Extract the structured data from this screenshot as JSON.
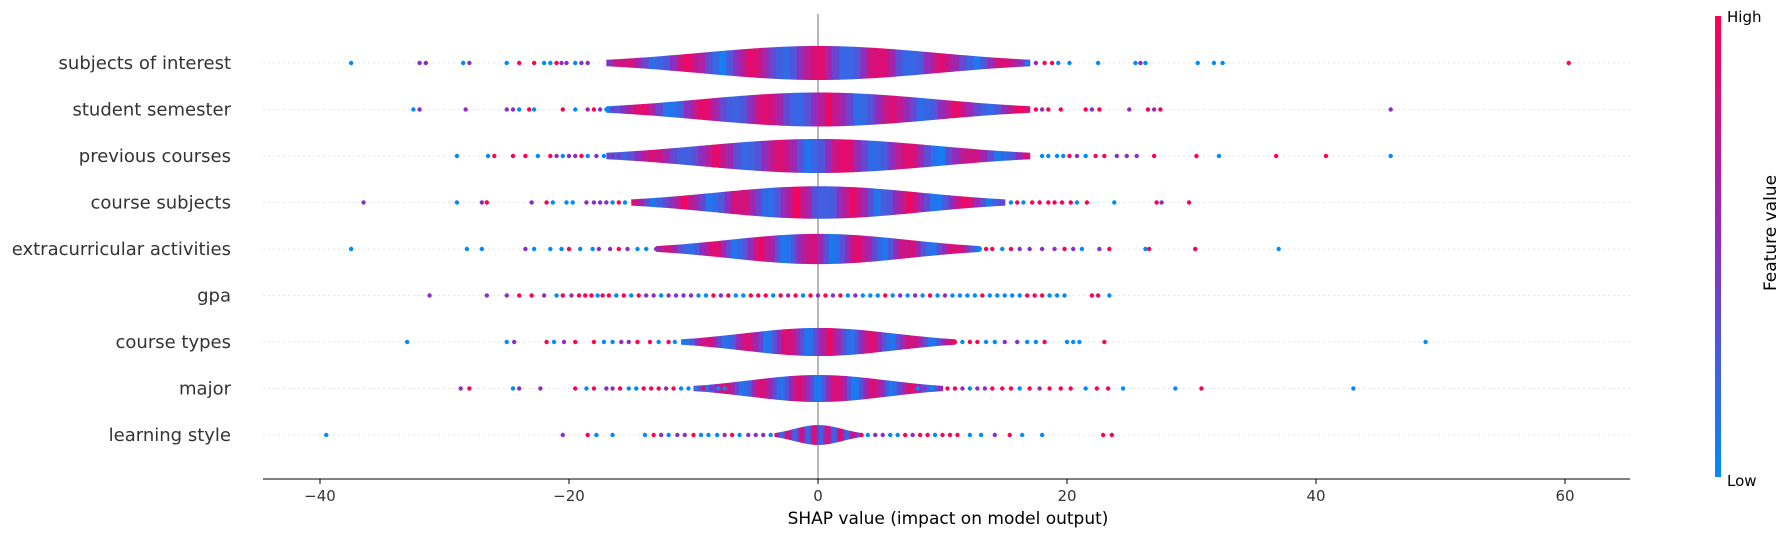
{
  "chart_data": {
    "type": "violin",
    "title": "",
    "xlabel": "SHAP value (impact on model output)",
    "xlim": [
      -45,
      65.5
    ],
    "xticks": [
      -40,
      -20,
      0,
      20,
      40,
      60
    ],
    "colorbar": {
      "label": "Feature value",
      "high": "High",
      "low": "Low"
    },
    "colors": {
      "low": "#008bfb",
      "mid": "#8a2fc2",
      "high": "#ff0052",
      "axis": "#000000",
      "zero_line": "#999999",
      "row_grid": "#e6e6e6"
    },
    "features": [
      {
        "name": "subjects of interest",
        "spread": 17,
        "outliers": [
          -37.5,
          -32,
          -31.5,
          -28.5,
          -28,
          -25,
          -24,
          -22.8,
          -22,
          -21.5,
          -21,
          -20.6,
          -20.2,
          -19.5,
          -19,
          -18.5,
          16.8,
          17.5,
          18.2,
          18.8,
          19.3,
          20.2,
          22.5,
          25.5,
          25.9,
          26.3,
          30.5,
          31.8,
          32.5,
          60.3
        ]
      },
      {
        "name": "student semester",
        "spread": 17,
        "outliers": [
          -32.5,
          -32,
          -28.3,
          -25,
          -24.5,
          -24,
          -23.2,
          -22.8,
          -20.5,
          -19.5,
          -18.5,
          -18,
          -17.5,
          -17,
          -16.5,
          17.5,
          18,
          18.5,
          19.5,
          21.5,
          22,
          22.6,
          25,
          26.5,
          27,
          27.5,
          46
        ]
      },
      {
        "name": "previous courses",
        "spread": 17,
        "outliers": [
          -29,
          -26.5,
          -26,
          -24.5,
          -23.5,
          -22.5,
          -21.5,
          -21,
          -20.5,
          -20,
          -19.5,
          -19,
          -18.5,
          -17.8,
          -17.2,
          -16.5,
          -16,
          18,
          18.5,
          19.2,
          19.7,
          20.2,
          20.8,
          21.5,
          22.3,
          23,
          24,
          24.8,
          25.6,
          27,
          30.4,
          32.2,
          36.8,
          40.8,
          46
        ]
      },
      {
        "name": "course subjects",
        "spread": 15,
        "outliers": [
          -36.5,
          -29,
          -27,
          -26.6,
          -23,
          -21.8,
          -21.3,
          -20.2,
          -19.7,
          -18.6,
          -18,
          -17.5,
          -17,
          -16.5,
          -16,
          -15.5,
          15.5,
          16,
          16.5,
          17.2,
          17.8,
          18.5,
          19,
          19.6,
          20.3,
          20.8,
          21.6,
          23.8,
          27.2,
          27.6,
          29.8
        ]
      },
      {
        "name": "extracurricular activities",
        "spread": 13,
        "outliers": [
          -37.5,
          -28.2,
          -27,
          -23.5,
          -22.8,
          -21.5,
          -20.6,
          -20,
          -19.1,
          -18.1,
          -17.6,
          -16.7,
          -16,
          -15.3,
          -14.5,
          -13.8,
          -13,
          -12.5,
          13,
          13.5,
          14,
          14.8,
          15.5,
          16.2,
          17,
          18,
          19,
          19.8,
          20.5,
          21.2,
          22.6,
          23.4,
          26.3,
          26.6,
          30.3,
          37
        ]
      },
      {
        "name": "gpa",
        "spread": 0,
        "outliers": [
          -31.2,
          -26.6,
          -25,
          -24,
          -23,
          -22,
          -21,
          -20.5,
          -19.8,
          -19.2,
          -18.7,
          -18.2,
          -17.7,
          -17.3,
          -16.8,
          -16.2,
          -15.6,
          -15,
          -14.4,
          -13.8,
          -13.2,
          -12.6,
          -12,
          -11.4,
          -10.8,
          -10.2,
          -9.6,
          -9,
          -8.4,
          -7.8,
          -7.2,
          -6.6,
          -6,
          -5.4,
          -4.8,
          -4.2,
          -3.6,
          -3,
          -2.4,
          -1.8,
          -1.2,
          -0.6,
          0,
          0.6,
          1.2,
          1.8,
          2.4,
          3,
          3.6,
          4.2,
          4.8,
          5.4,
          6,
          6.6,
          7.2,
          7.8,
          8.4,
          9,
          9.6,
          10.2,
          10.8,
          11.4,
          12,
          12.6,
          13.2,
          13.8,
          14.4,
          15,
          15.6,
          16.2,
          16.8,
          17.4,
          18,
          18.6,
          19.2,
          19.8,
          22,
          22.5,
          23.4
        ]
      },
      {
        "name": "course types",
        "spread": 11,
        "outliers": [
          -33,
          -25,
          -24.4,
          -21.8,
          -21.2,
          -20.4,
          -19.5,
          -18,
          -17.2,
          -16.5,
          -15.8,
          -15.2,
          -14.5,
          -13.5,
          -12.8,
          -12,
          -11.5,
          11,
          11.6,
          12.2,
          12.8,
          13.5,
          14.2,
          15,
          16,
          16.8,
          17.5,
          18.2,
          20,
          20.5,
          21,
          23,
          48.8
        ]
      },
      {
        "name": "major",
        "spread": 10,
        "outliers": [
          -28.7,
          -28,
          -24.5,
          -24,
          -22.3,
          -19.5,
          -18.6,
          -18,
          -17,
          -16.5,
          -15.9,
          -15.2,
          -14.6,
          -14,
          -13.4,
          -12.8,
          -12.2,
          -11.6,
          -11,
          -10.4,
          -9.8,
          -9.2,
          -8.6,
          -8,
          -7.5,
          8,
          8.6,
          9.2,
          9.8,
          10.4,
          11,
          11.6,
          12.2,
          12.8,
          13.4,
          14,
          14.8,
          15.5,
          16.2,
          17,
          17.8,
          18.6,
          19.5,
          20.3,
          21.5,
          22.4,
          23.3,
          24.5,
          28.7,
          30.8,
          43
        ]
      },
      {
        "name": "learning style",
        "spread": 3.5,
        "outliers": [
          -39.5,
          -20.5,
          -18.5,
          -17.8,
          -16.5,
          -13.9,
          -13.2,
          -12.6,
          -12,
          -11.3,
          -10.7,
          -10,
          -9.4,
          -8.8,
          -8.1,
          -7.5,
          -6.9,
          -6.3,
          -5.6,
          -5,
          -4.4,
          -3.8,
          3.5,
          4,
          4.6,
          5.2,
          5.8,
          6.4,
          7,
          7.6,
          8.2,
          8.8,
          9.4,
          10,
          10.6,
          11.2,
          12.2,
          13.1,
          14.2,
          15.4,
          16.4,
          18,
          22.9,
          23.6
        ]
      }
    ]
  }
}
